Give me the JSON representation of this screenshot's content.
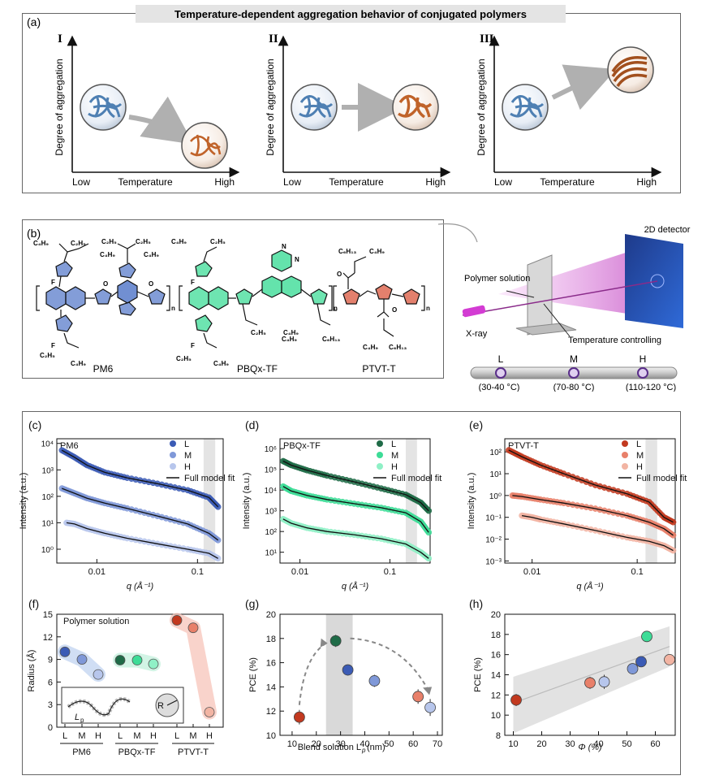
{
  "panel_a": {
    "label": "(a)",
    "title": "Temperature-dependent aggregation behavior of conjugated polymers",
    "subpanels": [
      {
        "roman": "I",
        "ylabel": "Degree of aggregation",
        "x_low": "Low",
        "x_mid": "Temperature",
        "x_high": "High"
      },
      {
        "roman": "II",
        "ylabel": "Degree of aggregation",
        "x_low": "Low",
        "x_mid": "Temperature",
        "x_high": "High"
      },
      {
        "roman": "III",
        "ylabel": "Degree of aggregation",
        "x_low": "Low",
        "x_mid": "Temperature",
        "x_high": "High"
      }
    ]
  },
  "panel_b": {
    "label": "(b)",
    "molecules": [
      {
        "name": "PM6"
      },
      {
        "name": "PBQx-TF"
      },
      {
        "name": "PTVT-T"
      }
    ],
    "setup": {
      "detector": "2D detector",
      "solution": "Polymer solution",
      "xray": "X-ray",
      "temp_ctrl": "Temperature controlling",
      "temps": [
        {
          "label": "L",
          "range": "(30-40 °C)"
        },
        {
          "label": "M",
          "range": "(70-80 °C)"
        },
        {
          "label": "H",
          "range": "(110-120 °C)"
        }
      ]
    },
    "colors": {
      "pm6": "#4e73c7",
      "pbqx": "#3ddc97",
      "ptvt": "#d9553c"
    }
  },
  "chart_data": [
    {
      "type": "scatter",
      "panel": "(c)",
      "title": "PM6",
      "xlabel": "q (Å⁻¹)",
      "ylabel": "Intensity (a.u.)",
      "xscale": "log",
      "yscale": "log",
      "xlim": [
        0.004,
        0.18
      ],
      "ylim": [
        0.3,
        15000
      ],
      "xticks": [
        "0.01",
        "0.1"
      ],
      "yticks": [
        "10⁰",
        "10¹",
        "10²",
        "10³",
        "10⁴"
      ],
      "legend": [
        "L",
        "M",
        "H",
        "Full model fit"
      ],
      "colors": [
        "#3b5bb5",
        "#7f98d8",
        "#b7c6ec"
      ],
      "series": [
        {
          "name": "L",
          "x": [
            0.0045,
            0.006,
            0.008,
            0.012,
            0.02,
            0.04,
            0.08,
            0.13,
            0.16
          ],
          "y": [
            5500,
            3000,
            1500,
            800,
            500,
            300,
            170,
            90,
            40
          ]
        },
        {
          "name": "M",
          "x": [
            0.0045,
            0.006,
            0.008,
            0.012,
            0.02,
            0.04,
            0.08,
            0.13,
            0.16
          ],
          "y": [
            200,
            130,
            85,
            55,
            35,
            18,
            9,
            4,
            2.2
          ]
        },
        {
          "name": "H",
          "x": [
            0.005,
            0.006,
            0.008,
            0.012,
            0.02,
            0.04,
            0.08,
            0.13,
            0.16
          ],
          "y": [
            10,
            9,
            6,
            4,
            2.6,
            1.6,
            1.0,
            0.7,
            0.45
          ]
        }
      ]
    },
    {
      "type": "scatter",
      "panel": "(d)",
      "title": "PBQx-TF",
      "xlabel": "q (Å⁻¹)",
      "ylabel": "Intensity (a.u.)",
      "xscale": "log",
      "yscale": "log",
      "xlim": [
        0.006,
        0.28
      ],
      "ylim": [
        3,
        3000000
      ],
      "xticks": [
        "0.01",
        "0.1"
      ],
      "yticks": [
        "10¹",
        "10²",
        "10³",
        "10⁴",
        "10⁵",
        "10⁶"
      ],
      "legend": [
        "L",
        "M",
        "H",
        "Full model fit"
      ],
      "colors": [
        "#1f6b47",
        "#3ddc97",
        "#8ff0c6"
      ],
      "series": [
        {
          "name": "L",
          "x": [
            0.0065,
            0.008,
            0.012,
            0.02,
            0.04,
            0.08,
            0.15,
            0.22,
            0.27
          ],
          "y": [
            250000,
            160000,
            90000,
            50000,
            25000,
            12000,
            6000,
            2500,
            1000
          ]
        },
        {
          "name": "M",
          "x": [
            0.0065,
            0.008,
            0.012,
            0.02,
            0.04,
            0.08,
            0.15,
            0.22,
            0.27
          ],
          "y": [
            15000,
            9000,
            5500,
            3500,
            2200,
            1400,
            800,
            300,
            90
          ]
        },
        {
          "name": "H",
          "x": [
            0.0065,
            0.008,
            0.012,
            0.02,
            0.04,
            0.08,
            0.15,
            0.22,
            0.27
          ],
          "y": [
            400,
            250,
            150,
            100,
            70,
            45,
            25,
            10,
            5
          ]
        }
      ]
    },
    {
      "type": "scatter",
      "panel": "(e)",
      "title": "PTVT-T",
      "xlabel": "q (Å⁻¹)",
      "ylabel": "Intensity (a.u.)",
      "xscale": "log",
      "yscale": "log",
      "xlim": [
        0.0055,
        0.23
      ],
      "ylim": [
        0.0008,
        400
      ],
      "xticks": [
        "0.01",
        "0.1"
      ],
      "yticks": [
        "10⁻³",
        "10⁻²",
        "10⁻¹",
        "10⁰",
        "10¹",
        "10²"
      ],
      "legend": [
        "L",
        "M",
        "H",
        "Full model fit"
      ],
      "colors": [
        "#c2391f",
        "#e8806a",
        "#f2b4a3"
      ],
      "series": [
        {
          "name": "L",
          "x": [
            0.006,
            0.008,
            0.012,
            0.02,
            0.04,
            0.08,
            0.13,
            0.18,
            0.22
          ],
          "y": [
            120,
            60,
            25,
            10,
            3,
            1.2,
            0.5,
            0.1,
            0.06
          ]
        },
        {
          "name": "M",
          "x": [
            0.0065,
            0.008,
            0.012,
            0.02,
            0.04,
            0.08,
            0.13,
            0.18,
            0.22
          ],
          "y": [
            1.0,
            0.9,
            0.65,
            0.45,
            0.25,
            0.12,
            0.06,
            0.03,
            0.015
          ]
        },
        {
          "name": "H",
          "x": [
            0.008,
            0.01,
            0.012,
            0.02,
            0.04,
            0.08,
            0.13,
            0.18,
            0.22
          ],
          "y": [
            0.12,
            0.1,
            0.08,
            0.05,
            0.025,
            0.012,
            0.008,
            0.005,
            0.003
          ]
        }
      ]
    },
    {
      "type": "scatter",
      "panel": "(f)",
      "title": "Polymer solution",
      "ylabel": "Radius (Å)",
      "ylim": [
        0,
        15
      ],
      "yticks": [
        "0",
        "3",
        "6",
        "9",
        "12",
        "15"
      ],
      "groups": [
        {
          "name": "PM6",
          "categories": [
            "L",
            "M",
            "H"
          ],
          "values": [
            10.0,
            9.0,
            7.0
          ],
          "colors": [
            "#3b5bb5",
            "#7f98d8",
            "#b7c6ec"
          ]
        },
        {
          "name": "PBQx-TF",
          "categories": [
            "L",
            "M",
            "H"
          ],
          "values": [
            8.9,
            8.9,
            8.4
          ],
          "colors": [
            "#1f6b47",
            "#3ddc97",
            "#8ff0c6"
          ]
        },
        {
          "name": "PTVT-T",
          "categories": [
            "L",
            "M",
            "H"
          ],
          "values": [
            14.2,
            13.2,
            2.0
          ],
          "colors": [
            "#c2391f",
            "#e8806a",
            "#f2b4a3"
          ]
        }
      ],
      "inset": {
        "lp": "L",
        "lp_sub": "p",
        "r": "R"
      }
    },
    {
      "type": "scatter",
      "panel": "(g)",
      "xlabel": "Blend solution L",
      "xlabel_sub": "p",
      "xlabel_unit": " (nm)",
      "ylabel": "PCE (%)",
      "xlim": [
        5,
        72
      ],
      "ylim": [
        10,
        20
      ],
      "xticks": [
        "10",
        "20",
        "30",
        "40",
        "50",
        "60",
        "70"
      ],
      "yticks": [
        "10",
        "12",
        "14",
        "16",
        "18",
        "20"
      ],
      "points": [
        {
          "x": 13,
          "y": 11.5,
          "err": 0.6,
          "color": "#c2391f"
        },
        {
          "x": 28,
          "y": 17.8,
          "err": 0.5,
          "color": "#1f6b47"
        },
        {
          "x": 33,
          "y": 15.4,
          "err": 0.4,
          "color": "#3b5bb5"
        },
        {
          "x": 44,
          "y": 14.5,
          "err": 0.5,
          "color": "#7f98d8"
        },
        {
          "x": 62,
          "y": 13.2,
          "err": 0.6,
          "color": "#e8806a"
        },
        {
          "x": 67,
          "y": 12.3,
          "err": 0.7,
          "color": "#b7c6ec"
        }
      ],
      "shade": [
        24,
        35
      ]
    },
    {
      "type": "scatter",
      "panel": "(h)",
      "xlabel": "Φ (%)",
      "ylabel": "PCE (%)",
      "xlim": [
        7,
        67
      ],
      "ylim": [
        8,
        20
      ],
      "xticks": [
        "10",
        "20",
        "30",
        "40",
        "50",
        "60"
      ],
      "yticks": [
        "8",
        "10",
        "12",
        "14",
        "16",
        "18",
        "20"
      ],
      "points": [
        {
          "x": 11,
          "y": 11.5,
          "err": 0.6,
          "color": "#c2391f"
        },
        {
          "x": 37,
          "y": 13.2,
          "err": 0.6,
          "color": "#e8806a"
        },
        {
          "x": 42,
          "y": 13.3,
          "err": 0.7,
          "color": "#b7c6ec"
        },
        {
          "x": 52,
          "y": 14.6,
          "err": 0.4,
          "color": "#7f98d8"
        },
        {
          "x": 55,
          "y": 15.3,
          "err": 0.4,
          "color": "#3b5bb5"
        },
        {
          "x": 57,
          "y": 17.8,
          "err": 0.5,
          "color": "#3ddc97"
        },
        {
          "x": 65,
          "y": 15.5,
          "err": 0.4,
          "color": "#f2b4a3"
        }
      ],
      "fit": [
        [
          10,
          11.2
        ],
        [
          65,
          16.8
        ]
      ]
    }
  ]
}
